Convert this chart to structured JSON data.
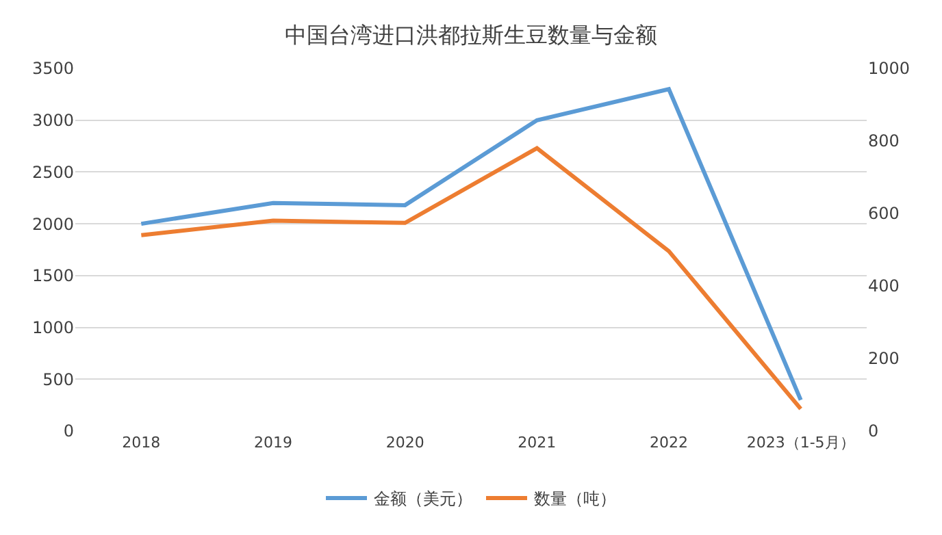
{
  "chart_data": {
    "type": "line",
    "title": "中国台湾进口洪都拉斯生豆数量与金额",
    "categories": [
      "2018",
      "2019",
      "2020",
      "2021",
      "2022",
      "2023（1-5月）"
    ],
    "series": [
      {
        "name": "金额（美元）",
        "color": "#5b9bd5",
        "values": [
          2000,
          2200,
          2180,
          3000,
          3300,
          300
        ]
      },
      {
        "name": "数量（吨）",
        "color": "#ed7d31",
        "axis": "y2",
        "values": [
          540,
          580,
          574,
          780,
          496,
          61
        ]
      }
    ],
    "ylim": [
      0,
      3500
    ],
    "yticks": [
      0,
      500,
      1000,
      1500,
      2000,
      2500,
      3000,
      3500
    ],
    "y2lim": [
      0,
      1000
    ],
    "y2ticks": [
      0,
      200,
      400,
      600,
      800,
      1000
    ],
    "grid": "y",
    "legend": "bottom",
    "marker": "none",
    "line_style": "solid"
  }
}
